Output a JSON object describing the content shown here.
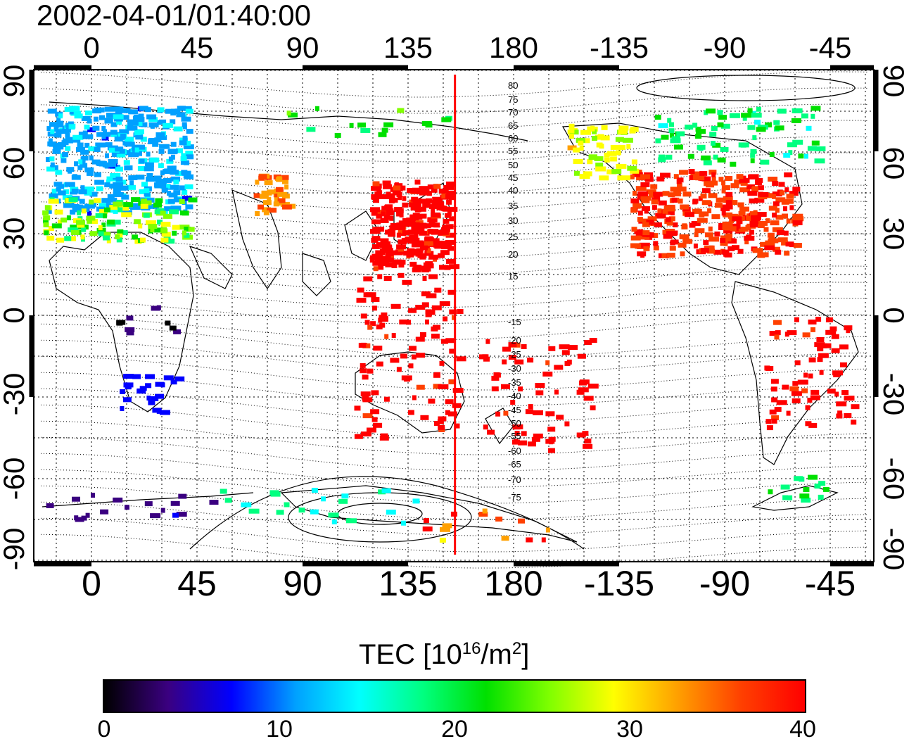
{
  "title": "2002-04-01/01:40:00",
  "x_ticks": [
    "0",
    "45",
    "90",
    "135",
    "180",
    "-135",
    "-90",
    "-45"
  ],
  "y_ticks": [
    "90",
    "60",
    "30",
    "0",
    "-30",
    "-60",
    "-90"
  ],
  "colorbar": {
    "label": "TEC  [10",
    "label_exp": "16",
    "label_unit": "/m",
    "label_unit_exp": "2",
    "label_close": "]",
    "ticks": [
      "0",
      "10",
      "20",
      "30",
      "40"
    ],
    "colors": [
      "#000000",
      "#3a0080",
      "#0000ff",
      "#00a0ff",
      "#00ffff",
      "#00ff80",
      "#00e000",
      "#80ff00",
      "#ffff00",
      "#ffa000",
      "#ff4000",
      "#ff0000"
    ]
  },
  "contour_labels": [
    "80",
    "75",
    "70",
    "65",
    "60",
    "55",
    "50",
    "45",
    "40",
    "35",
    "30",
    "25",
    "20",
    "15",
    "-15",
    "-20",
    "-25",
    "-30",
    "-35",
    "-40",
    "-45",
    "-50",
    "-55",
    "-60",
    "-65",
    "-70",
    "-75"
  ],
  "terminator_longitude": 155
}
